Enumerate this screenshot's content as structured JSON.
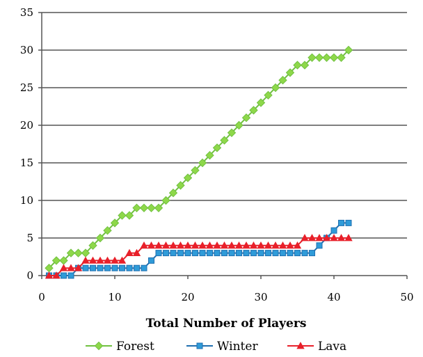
{
  "chart_data": {
    "type": "line",
    "title": "",
    "xlabel": "Total Number of Players",
    "ylabel": "",
    "xlim": [
      0,
      50
    ],
    "ylim": [
      0,
      35
    ],
    "xticks": [
      0,
      10,
      20,
      30,
      40,
      50
    ],
    "yticks": [
      0,
      5,
      10,
      15,
      20,
      25,
      30,
      35
    ],
    "grid": "horizontal",
    "legend_position": "bottom",
    "x": [
      1,
      2,
      3,
      4,
      5,
      6,
      7,
      8,
      9,
      10,
      11,
      12,
      13,
      14,
      15,
      16,
      17,
      18,
      19,
      20,
      21,
      22,
      23,
      24,
      25,
      26,
      27,
      28,
      29,
      30,
      31,
      32,
      33,
      34,
      35,
      36,
      37,
      38,
      39,
      40,
      41,
      42
    ],
    "series": [
      {
        "name": "Forest",
        "color": "#70c040",
        "marker": "diamond",
        "marker_color": "#8ed84a",
        "values": [
          1,
          2,
          2,
          3,
          3,
          3,
          4,
          5,
          6,
          7,
          8,
          8,
          9,
          9,
          9,
          9,
          10,
          11,
          12,
          13,
          14,
          15,
          16,
          17,
          18,
          19,
          20,
          21,
          22,
          23,
          24,
          25,
          26,
          27,
          28,
          28,
          29,
          29,
          29,
          29,
          29,
          30
        ]
      },
      {
        "name": "Winter",
        "color": "#1f6fb0",
        "marker": "square",
        "marker_color": "#2f9bd8",
        "values": [
          0,
          0,
          0,
          0,
          1,
          1,
          1,
          1,
          1,
          1,
          1,
          1,
          1,
          1,
          2,
          3,
          3,
          3,
          3,
          3,
          3,
          3,
          3,
          3,
          3,
          3,
          3,
          3,
          3,
          3,
          3,
          3,
          3,
          3,
          3,
          3,
          3,
          4,
          5,
          6,
          7,
          7
        ]
      },
      {
        "name": "Lava",
        "color": "#e8202a",
        "marker": "triangle",
        "marker_color": "#e8202a",
        "values": [
          0,
          0,
          1,
          1,
          1,
          2,
          2,
          2,
          2,
          2,
          2,
          3,
          3,
          4,
          4,
          4,
          4,
          4,
          4,
          4,
          4,
          4,
          4,
          4,
          4,
          4,
          4,
          4,
          4,
          4,
          4,
          4,
          4,
          4,
          4,
          5,
          5,
          5,
          5,
          5,
          5,
          5
        ]
      }
    ]
  }
}
